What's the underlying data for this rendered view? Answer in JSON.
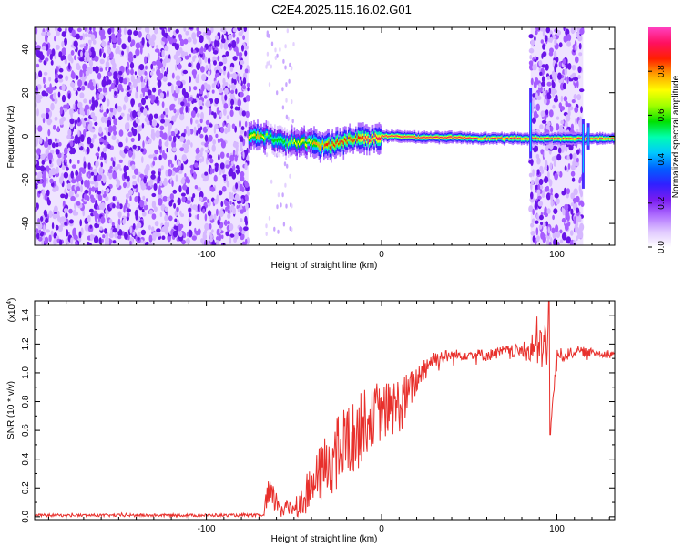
{
  "title": "C2E4.2025.115.16.02.G01",
  "chart_data": [
    {
      "type": "heatmap",
      "xlabel": "Height of straight line (km)",
      "ylabel": "Frequency (Hz)",
      "xlim": [
        -198,
        133
      ],
      "ylim": [
        -50,
        50
      ],
      "xticks": [
        -100,
        0,
        100
      ],
      "xtick_labels": [
        "-100",
        "0",
        "100"
      ],
      "yticks": [
        -40,
        -20,
        0,
        20,
        40
      ],
      "ytick_labels": [
        "-40",
        "-20",
        "0",
        "20",
        "40"
      ],
      "colorbar": {
        "label": "Normalized spectral amplitude",
        "range": [
          0,
          1
        ],
        "ticks": [
          0.0,
          0.2,
          0.4,
          0.6,
          0.8
        ],
        "tick_labels": [
          "0.0",
          "0.2",
          "0.4",
          "0.6",
          "0.8"
        ],
        "colors": [
          "#ffffff",
          "#e0c8ff",
          "#b070ff",
          "#7a1cf0",
          "#3020ff",
          "#0060ff",
          "#00c8ff",
          "#00ffb0",
          "#00e000",
          "#a0ff00",
          "#ffff00",
          "#ffa000",
          "#ff2000",
          "#ff1060",
          "#ff40c0"
        ]
      },
      "regions": [
        {
          "x": [
            -198,
            -76
          ],
          "kind": "noise",
          "level": 0.2
        },
        {
          "x": [
            85,
            115
          ],
          "kind": "noise",
          "level": 0.2
        },
        {
          "x": [
            -76,
            133
          ],
          "kind": "signal_band"
        }
      ],
      "signal_ridge": {
        "x": [
          -76,
          -70,
          -65,
          -60,
          -55,
          -50,
          -45,
          -40,
          -35,
          -30,
          -25,
          -20,
          -15,
          -10,
          -5,
          0,
          10,
          20,
          40,
          60,
          80,
          85,
          100,
          118,
          125,
          133
        ],
        "y": [
          0,
          0,
          0,
          -2,
          -3,
          -3,
          -3,
          -3,
          -4,
          -4,
          -3,
          -2,
          -1,
          -1,
          -1,
          0,
          0,
          -0.5,
          -0.5,
          -1,
          -1,
          -1,
          -1,
          -1,
          -1,
          -1
        ],
        "peak_level": [
          0.7,
          0.8,
          0.6,
          0.6,
          0.6,
          0.7,
          0.7,
          0.75,
          0.8,
          0.85,
          0.85,
          0.85,
          0.85,
          0.9,
          0.9,
          0.9,
          0.9,
          0.9,
          0.9,
          0.95,
          0.95,
          0.95,
          0.95,
          0.95,
          0.95,
          0.95
        ]
      },
      "vertical_streaks": [
        {
          "x": 85,
          "y": [
            -10,
            22
          ]
        },
        {
          "x": 115,
          "y": [
            -24,
            8
          ]
        },
        {
          "x": 118,
          "y": [
            -6,
            6
          ]
        }
      ]
    },
    {
      "type": "line",
      "xlabel": "Height of straight line (km)",
      "ylabel": "SNR (10 * v/v)",
      "multiplier_base": "(x10",
      "multiplier_exp": "4",
      "multiplier_close": ")",
      "xlim": [
        -198,
        133
      ],
      "ylim": [
        -0.02,
        1.5
      ],
      "xticks": [
        -100,
        0,
        100
      ],
      "xtick_labels": [
        "-100",
        "0",
        "100"
      ],
      "yticks": [
        0.0,
        0.2,
        0.4,
        0.6,
        0.8,
        1.0,
        1.2,
        1.4
      ],
      "ytick_labels": [
        "0.0",
        "0.2",
        "0.4",
        "0.6",
        "0.8",
        "1.0",
        "1.2",
        "1.4"
      ],
      "series": [
        {
          "color": "#e8302c",
          "x": [
            -198,
            -150,
            -100,
            -67,
            -66,
            -63,
            -60,
            -55,
            -50,
            -45,
            -40,
            -35,
            -30,
            -25,
            -20,
            -15,
            -10,
            -5,
            0,
            5,
            10,
            15,
            20,
            25,
            30,
            40,
            50,
            60,
            70,
            80,
            85,
            90,
            95,
            96,
            100,
            105,
            110,
            120,
            133
          ],
          "y": [
            0.01,
            0.01,
            0.01,
            0.01,
            0.1,
            0.15,
            0.1,
            0.05,
            0.08,
            0.1,
            0.2,
            0.3,
            0.38,
            0.45,
            0.52,
            0.55,
            0.65,
            0.7,
            0.72,
            0.75,
            0.78,
            0.85,
            0.95,
            1.05,
            1.1,
            1.12,
            1.13,
            1.12,
            1.15,
            1.15,
            1.16,
            1.17,
            1.2,
            0.57,
            1.12,
            1.12,
            1.15,
            1.14,
            1.13
          ],
          "spread": [
            0.01,
            0.01,
            0.01,
            0.01,
            0.15,
            0.1,
            0.08,
            0.06,
            0.08,
            0.1,
            0.15,
            0.2,
            0.25,
            0.25,
            0.28,
            0.25,
            0.25,
            0.2,
            0.2,
            0.2,
            0.2,
            0.15,
            0.1,
            0.08,
            0.06,
            0.04,
            0.04,
            0.04,
            0.04,
            0.05,
            0.1,
            0.15,
            0.2,
            0.0,
            0.06,
            0.04,
            0.04,
            0.03,
            0.03
          ]
        }
      ]
    }
  ]
}
